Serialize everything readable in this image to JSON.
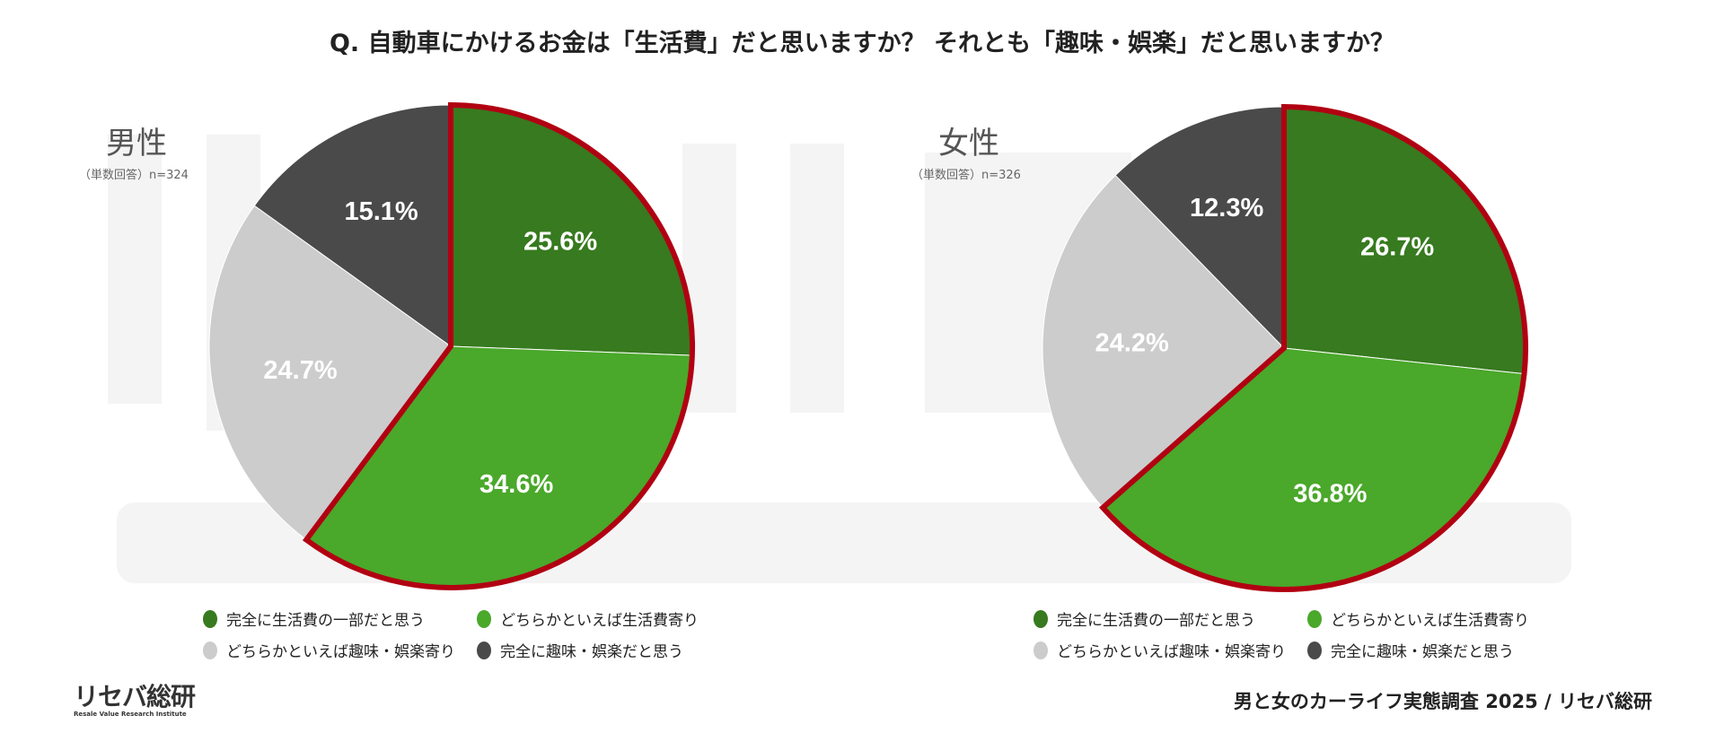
{
  "title": "Q. 自動車にかけるお金は「生活費」だと思いますか？ それとも「趣味・娯楽」だと思いますか？",
  "watermark": {
    "main": "リセバ総研",
    "sub": "Resale Value Research Institute"
  },
  "footer": "男と女のカーライフ実態調査 2025 / リセバ総研",
  "logo": {
    "main": "リセバ総研",
    "sub": "Resale Value Research Institute"
  },
  "colors": {
    "dark_green": "#377a1f",
    "green": "#4aa82a",
    "light_gray": "#cccccc",
    "dark_gray": "#4a4a4a",
    "highlight_border": "#b10012"
  },
  "chart_data": [
    {
      "type": "pie",
      "title": "男性",
      "subtitle": "（単数回答）n=324",
      "categories": [
        "完全に生活費の一部だと思う",
        "どちらかといえば生活費寄り",
        "どちらかといえば趣味・娯楽寄り",
        "完全に趣味・娯楽だと思う"
      ],
      "values": [
        25.6,
        34.6,
        24.7,
        15.1
      ],
      "labels": [
        "25.6%",
        "34.6%",
        "24.7%",
        "15.1%"
      ],
      "highlighted": [
        "完全に生活費の一部だと思う",
        "どちらかといえば生活費寄り"
      ],
      "legend": "bottom"
    },
    {
      "type": "pie",
      "title": "女性",
      "subtitle": "（単数回答）n=326",
      "categories": [
        "完全に生活費の一部だと思う",
        "どちらかといえば生活費寄り",
        "どちらかといえば趣味・娯楽寄り",
        "完全に趣味・娯楽だと思う"
      ],
      "values": [
        26.7,
        36.8,
        24.2,
        12.3
      ],
      "labels": [
        "26.7%",
        "36.8%",
        "24.2%",
        "12.3%"
      ],
      "highlighted": [
        "完全に生活費の一部だと思う",
        "どちらかといえば生活費寄り"
      ],
      "legend": "bottom"
    }
  ]
}
